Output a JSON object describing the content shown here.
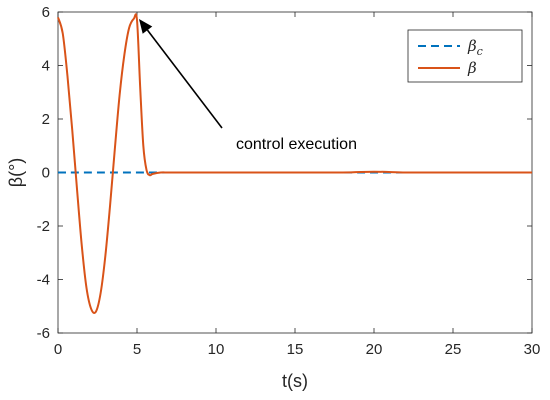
{
  "chart_data": {
    "type": "line",
    "xlabel": "t(s)",
    "ylabel": "β(°)",
    "xlim": [
      0,
      30
    ],
    "ylim": [
      -6,
      6
    ],
    "xticks": [
      0,
      5,
      10,
      15,
      20,
      25,
      30
    ],
    "yticks": [
      -6,
      -4,
      -2,
      0,
      2,
      4,
      6
    ],
    "x_tick_labels": [
      "0",
      "5",
      "10",
      "15",
      "20",
      "25",
      "30"
    ],
    "y_tick_labels": [
      "-6",
      "-4",
      "-2",
      "0",
      "2",
      "4",
      "6"
    ],
    "grid": false,
    "legend_position": "top-right",
    "series": [
      {
        "name": "βc",
        "style": "dashed",
        "color": "#0072BD",
        "x": [
          0,
          30
        ],
        "y": [
          0,
          0
        ]
      },
      {
        "name": "β",
        "style": "solid",
        "color": "#D95319",
        "x": [
          0,
          0.3,
          0.6,
          0.9,
          1.2,
          1.5,
          1.8,
          2.1,
          2.4,
          2.7,
          3.0,
          3.3,
          3.6,
          3.9,
          4.2,
          4.5,
          4.8,
          5.0,
          5.2,
          5.4,
          5.6,
          5.8,
          6.0,
          6.5,
          7,
          8,
          10,
          14,
          18,
          20,
          22,
          24,
          26,
          28,
          30
        ],
        "y": [
          5.8,
          5.2,
          3.6,
          1.6,
          -0.6,
          -2.7,
          -4.3,
          -5.1,
          -5.2,
          -4.5,
          -3.1,
          -1.2,
          0.9,
          2.9,
          4.4,
          5.4,
          5.75,
          5.7,
          3.2,
          1.0,
          0.1,
          -0.1,
          -0.05,
          0.0,
          0.0,
          0.0,
          0.0,
          0.0,
          0.0,
          0.03,
          0.0,
          0.0,
          0.0,
          0.0,
          0.0
        ]
      }
    ],
    "annotations": [
      {
        "text": "control execution",
        "arrow_to": {
          "x": 5.0,
          "y": 5.7
        }
      }
    ]
  }
}
